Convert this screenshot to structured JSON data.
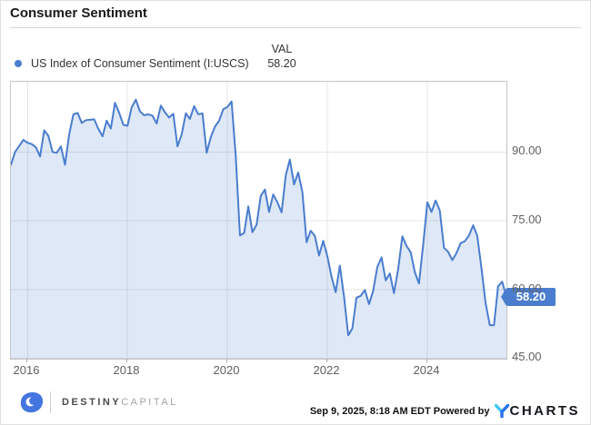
{
  "header": {
    "title": "Consumer Sentiment"
  },
  "legend": {
    "series_label": "US Index of Consumer Sentiment (I:USCS)",
    "val_header": "VAL",
    "val": "58.20"
  },
  "chart_data": {
    "type": "area",
    "title": "Consumer Sentiment",
    "x_start": "2015-09",
    "x_end": "2025-08",
    "frequency": "monthly",
    "series": [
      {
        "name": "US Index of Consumer Sentiment (I:USCS)",
        "values": [
          87.2,
          90.0,
          91.3,
          92.6,
          92.0,
          91.7,
          91.0,
          89.0,
          94.7,
          93.5,
          90.0,
          89.8,
          91.2,
          87.2,
          93.8,
          98.2,
          98.5,
          96.3,
          96.9,
          97.0,
          97.1,
          95.0,
          93.4,
          96.8,
          95.1,
          100.7,
          98.5,
          95.9,
          95.7,
          99.7,
          101.4,
          98.8,
          98.0,
          98.2,
          97.9,
          96.2,
          100.1,
          98.6,
          97.5,
          98.3,
          91.2,
          93.8,
          98.4,
          97.2,
          100.0,
          98.2,
          98.4,
          89.8,
          93.2,
          95.5,
          96.8,
          99.3,
          99.8,
          101.0,
          89.1,
          71.8,
          72.3,
          78.1,
          72.5,
          74.1,
          80.4,
          81.8,
          76.9,
          80.7,
          79.0,
          76.8,
          84.9,
          88.3,
          82.9,
          85.5,
          81.2,
          70.3,
          72.8,
          71.7,
          67.4,
          70.6,
          67.2,
          62.8,
          59.4,
          65.2,
          58.4,
          50.0,
          51.5,
          58.2,
          58.6,
          59.9,
          56.8,
          59.7,
          64.9,
          67.0,
          62.0,
          63.5,
          59.2,
          64.4,
          71.6,
          69.5,
          68.1,
          63.8,
          61.3,
          69.7,
          79.0,
          76.9,
          79.4,
          77.2,
          69.1,
          68.2,
          66.4,
          67.9,
          70.1,
          70.5,
          71.8,
          74.0,
          71.7,
          64.7,
          57.0,
          52.2,
          52.2,
          60.7,
          61.7,
          58.2
        ]
      }
    ],
    "ylim": [
      44.9,
      105.3
    ],
    "y_grid_values": [
      90,
      75,
      60,
      45
    ],
    "y_tick_labels": [
      "90.00",
      "75.00",
      "60.00",
      "45.00"
    ],
    "x_tick_indices": [
      4,
      28,
      52,
      76,
      100
    ],
    "x_tick_labels": [
      "2016",
      "2018",
      "2020",
      "2022",
      "2024"
    ],
    "grid": true,
    "legend_position": "top-left",
    "last_value": 58.2,
    "last_value_label": "58.20",
    "colors": {
      "line": "#4a7dce",
      "fill": "rgba(75,126,206,0.18)",
      "grid": "#e4e4e4",
      "badge": "#4a7dce"
    }
  },
  "footer": {
    "brand_bold": "DESTINY",
    "brand_light": "CAPITAL",
    "timestamp": "Sep 9, 2025, 8:18 AM EDT",
    "powered_by": "Powered by",
    "ycharts_charts": "CHARTS"
  }
}
